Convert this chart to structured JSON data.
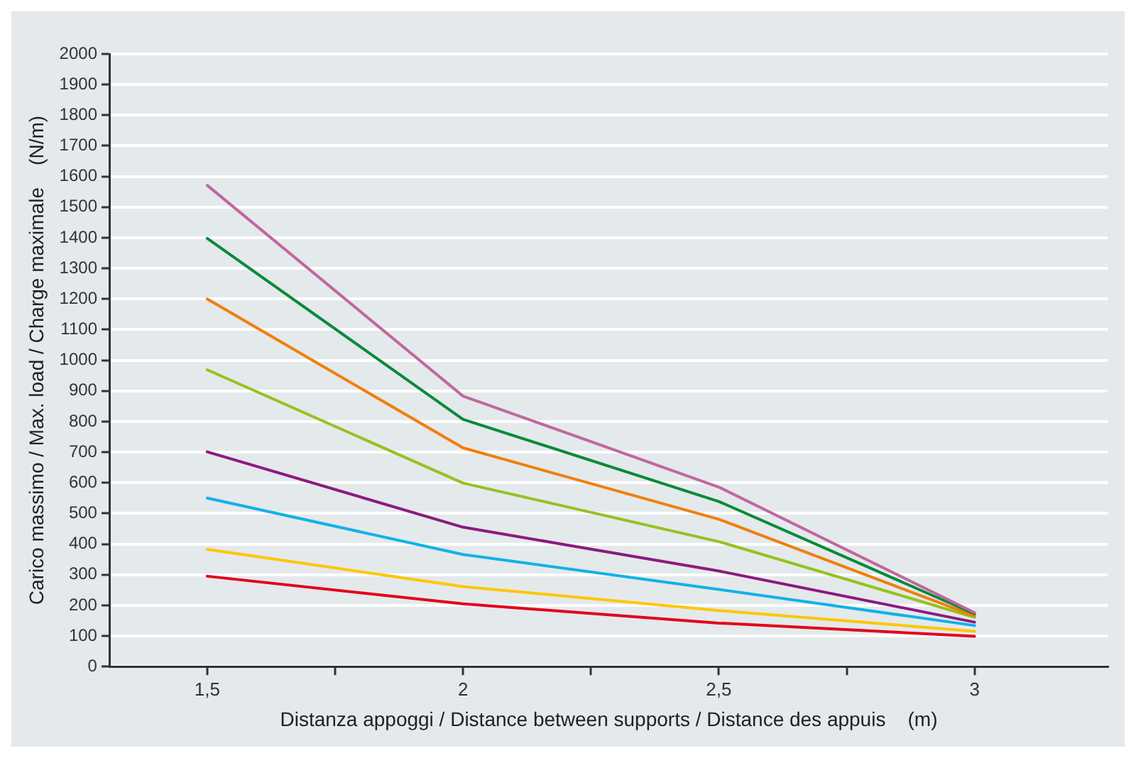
{
  "chart_data": {
    "type": "line",
    "xlabel": "Distanza appoggi / Distance between supports / Distance des appuis    (m)",
    "ylabel": "Carico massimo / Max. load / Charge maximale    (N/m)",
    "x": [
      1.5,
      2,
      2.5,
      3
    ],
    "series": [
      {
        "color": "#c0679f",
        "values": [
          1571,
          883,
          586,
          176
        ]
      },
      {
        "color": "#0a8a3a",
        "values": [
          1398,
          807,
          539,
          172
        ]
      },
      {
        "color": "#f07f0a",
        "values": [
          1200,
          714,
          481,
          165
        ]
      },
      {
        "color": "#97c11f",
        "values": [
          969,
          599,
          408,
          161
        ]
      },
      {
        "color": "#8d1a7f",
        "values": [
          701,
          455,
          312,
          145
        ]
      },
      {
        "color": "#12b2e6",
        "values": [
          550,
          366,
          252,
          134
        ]
      },
      {
        "color": "#fdc700",
        "values": [
          383,
          261,
          183,
          115
        ]
      },
      {
        "color": "#e3001b",
        "values": [
          295,
          205,
          142,
          99
        ]
      }
    ],
    "xlim": [
      1.31,
      3.26
    ],
    "xticks": [
      {
        "value": 1.5,
        "label": "1,5"
      },
      {
        "value": 1.75,
        "label": null
      },
      2,
      {
        "value": 2.25,
        "label": null
      },
      {
        "value": 2.5,
        "label": "2,5"
      },
      {
        "value": 2.75,
        "label": null
      },
      3
    ],
    "ylim": [
      0,
      2000
    ],
    "yticks": [
      0,
      100,
      200,
      300,
      400,
      500,
      600,
      700,
      800,
      900,
      1000,
      1100,
      1200,
      1300,
      1400,
      1500,
      1600,
      1700,
      1800,
      1900,
      2000
    ],
    "grid": "y",
    "legend": false,
    "marker": "none",
    "line_style": "solid"
  }
}
